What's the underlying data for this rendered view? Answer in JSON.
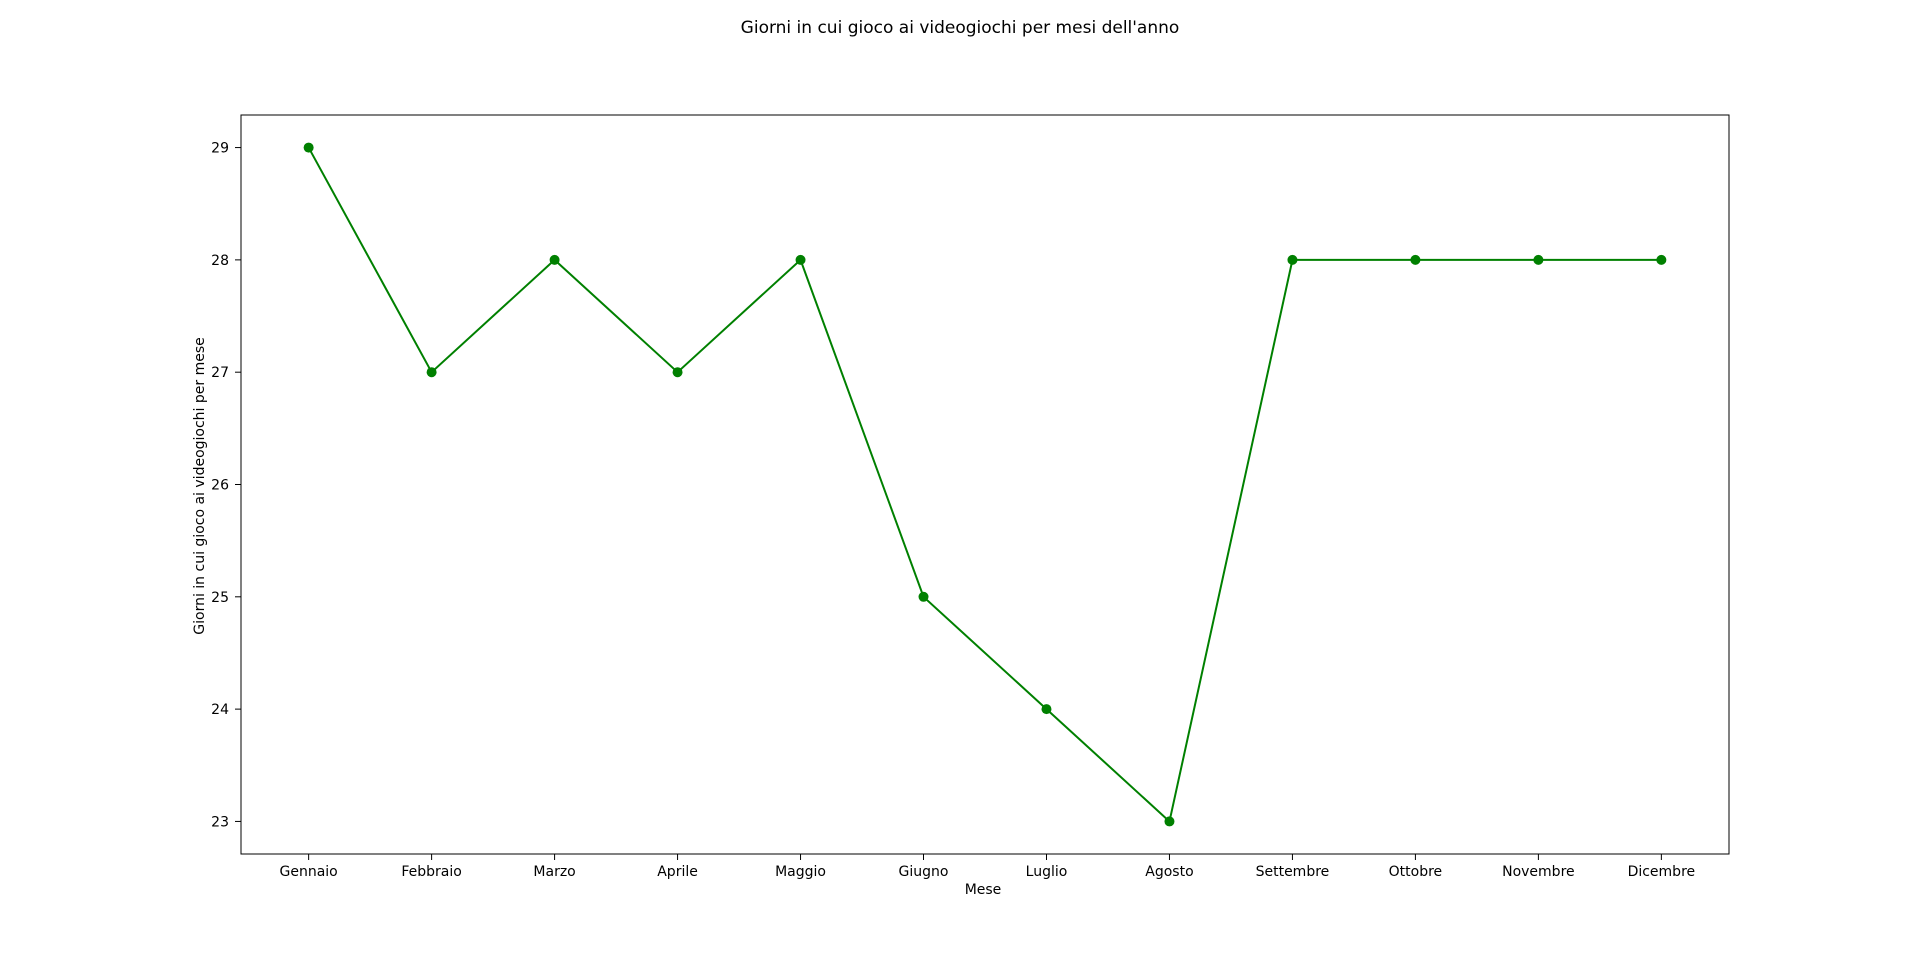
{
  "chart_data": {
    "type": "line",
    "title": "Giorni in cui gioco ai videogiochi per mesi dell'anno",
    "xlabel": "Mese",
    "ylabel": "Giorni in cui gioco ai videogiochi per mese",
    "categories": [
      "Gennaio",
      "Febbraio",
      "Marzo",
      "Aprile",
      "Maggio",
      "Giugno",
      "Luglio",
      "Agosto",
      "Settembre",
      "Ottobre",
      "Novembre",
      "Dicembre"
    ],
    "series": [
      {
        "values": [
          29,
          27,
          28,
          27,
          28,
          25,
          24,
          23,
          28,
          28,
          28,
          28
        ],
        "color": "#008000"
      }
    ],
    "ylim": [
      22.71,
      29.29
    ],
    "yticks": [
      23,
      24,
      25,
      26,
      27,
      28,
      29
    ],
    "grid": false,
    "legend": "none",
    "marker": "circle"
  }
}
